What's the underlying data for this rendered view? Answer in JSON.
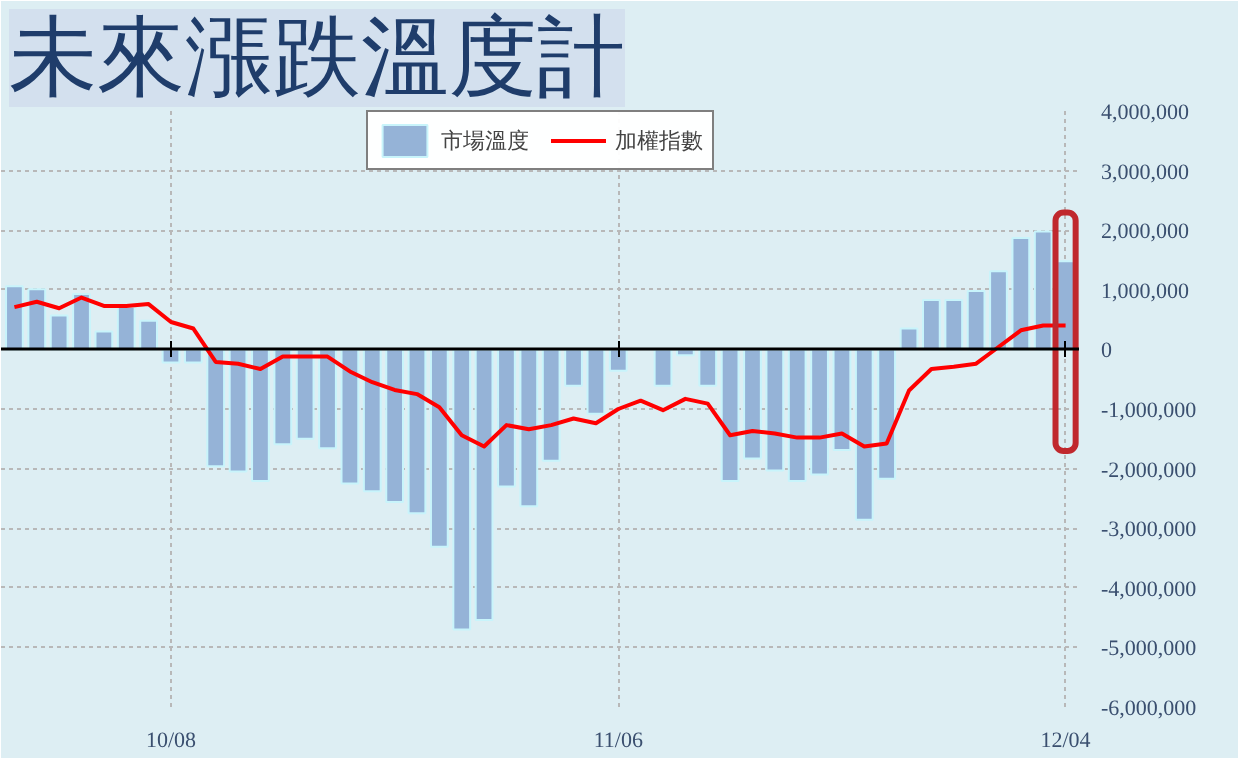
{
  "chart_data": {
    "type": "bar",
    "title": "未來漲跌溫度計",
    "categories": [
      null,
      null,
      null,
      null,
      null,
      null,
      null,
      "10/08",
      null,
      null,
      null,
      null,
      null,
      null,
      null,
      null,
      null,
      null,
      null,
      null,
      null,
      null,
      null,
      null,
      null,
      null,
      null,
      "11/06",
      null,
      null,
      null,
      null,
      null,
      null,
      null,
      null,
      null,
      null,
      null,
      null,
      null,
      null,
      null,
      null,
      null,
      null,
      null,
      "12/04"
    ],
    "series": [
      {
        "name": "市場溫度",
        "color": "#95b3d7",
        "values": [
          1060000,
          1010000,
          570000,
          930000,
          300000,
          710000,
          480000,
          -220000,
          -220000,
          -1960000,
          -2050000,
          -2210000,
          -1590000,
          -1500000,
          -1660000,
          -2250000,
          -2380000,
          -2560000,
          -2750000,
          -3310000,
          -4700000,
          -4540000,
          -2300000,
          -2630000,
          -1870000,
          -610000,
          -1080000,
          -360000,
          null,
          -610000,
          -100000,
          -610000,
          -2210000,
          -1830000,
          -2030000,
          -2210000,
          -2100000,
          -1690000,
          -2860000,
          -2170000,
          350000,
          830000,
          830000,
          980000,
          1310000,
          1870000,
          1980000,
          1480000
        ]
      },
      {
        "name": "加權指數",
        "type": "line",
        "color": "#ff0000",
        "values": [
          710000,
          800000,
          690000,
          870000,
          730000,
          730000,
          760000,
          460000,
          350000,
          -210000,
          -240000,
          -330000,
          -120000,
          -120000,
          -120000,
          -370000,
          -550000,
          -680000,
          -750000,
          -970000,
          -1440000,
          -1630000,
          -1270000,
          -1340000,
          -1270000,
          -1160000,
          -1240000,
          -1000000,
          -860000,
          -1020000,
          -830000,
          -910000,
          -1440000,
          -1370000,
          -1410000,
          -1480000,
          -1480000,
          -1410000,
          -1630000,
          -1580000,
          -690000,
          -330000,
          -290000,
          -240000,
          40000,
          320000,
          400000,
          400000
        ]
      }
    ],
    "ylim": [
      -6000000,
      4000000
    ],
    "yticks": [
      {
        "value": 4000000,
        "label": "4,000,000"
      },
      {
        "value": 3000000,
        "label": "3,000,000"
      },
      {
        "value": 2000000,
        "label": "2,000,000"
      },
      {
        "value": 1000000,
        "label": "1,000,000"
      },
      {
        "value": 0,
        "label": "0"
      },
      {
        "value": -1000000,
        "label": "-1,000,000"
      },
      {
        "value": -2000000,
        "label": "-2,000,000"
      },
      {
        "value": -3000000,
        "label": "-3,000,000"
      },
      {
        "value": -4000000,
        "label": "-4,000,000"
      },
      {
        "value": -5000000,
        "label": "-5,000,000"
      },
      {
        "value": -6000000,
        "label": "-6,000,000"
      }
    ],
    "grid": true,
    "legend": "top",
    "line_style": "solid"
  }
}
